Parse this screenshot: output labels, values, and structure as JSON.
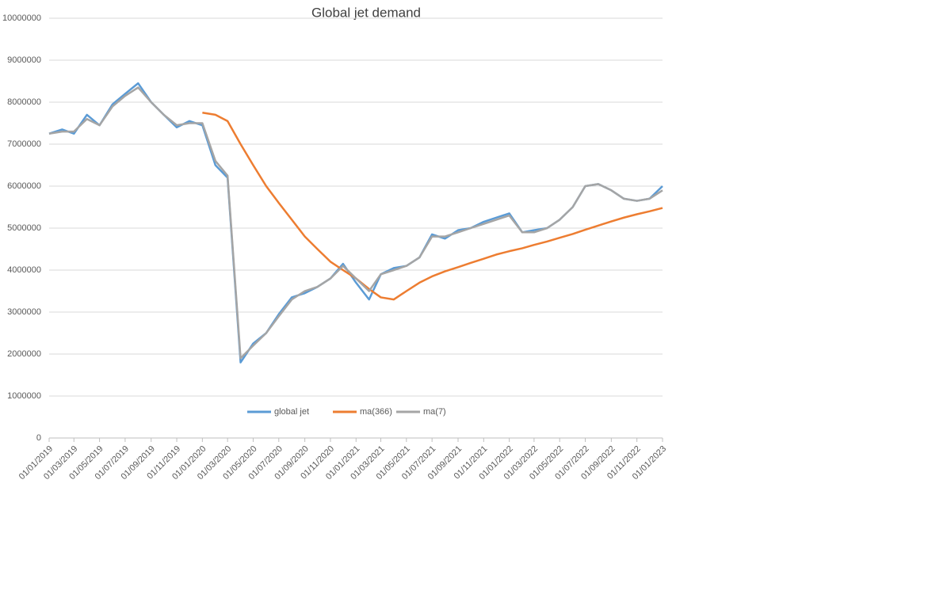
{
  "chart_data": {
    "type": "line",
    "title": "Global jet demand",
    "x": [
      "01/01/2019",
      "01/02/2019",
      "01/03/2019",
      "01/04/2019",
      "01/05/2019",
      "01/06/2019",
      "01/07/2019",
      "01/08/2019",
      "01/09/2019",
      "01/10/2019",
      "01/11/2019",
      "01/12/2019",
      "01/01/2020",
      "01/02/2020",
      "01/03/2020",
      "01/04/2020",
      "01/05/2020",
      "01/06/2020",
      "01/07/2020",
      "01/08/2020",
      "01/09/2020",
      "01/10/2020",
      "01/11/2020",
      "01/12/2020",
      "01/01/2021",
      "01/02/2021",
      "01/03/2021",
      "01/04/2021",
      "01/05/2021",
      "01/06/2021",
      "01/07/2021",
      "01/08/2021",
      "01/09/2021",
      "01/10/2021",
      "01/11/2021",
      "01/12/2021",
      "01/01/2022",
      "01/02/2022",
      "01/03/2022",
      "01/04/2022",
      "01/05/2022",
      "01/06/2022",
      "01/07/2022",
      "01/08/2022",
      "01/09/2022",
      "01/10/2022",
      "01/11/2022",
      "01/12/2022",
      "01/01/2023"
    ],
    "series": [
      {
        "name": "global jet",
        "color": "#5b9bd5",
        "values": [
          7250000,
          7350000,
          7250000,
          7700000,
          7450000,
          7950000,
          8200000,
          8450000,
          8000000,
          7700000,
          7400000,
          7550000,
          7450000,
          6500000,
          6200000,
          1800000,
          2250000,
          2500000,
          2950000,
          3350000,
          3450000,
          3600000,
          3800000,
          4150000,
          3700000,
          3300000,
          3900000,
          4050000,
          4100000,
          4300000,
          4850000,
          4750000,
          4950000,
          5000000,
          5150000,
          5250000,
          5350000,
          4900000,
          4950000,
          5000000,
          5200000,
          5500000,
          6000000,
          6050000,
          5900000,
          5700000,
          5650000,
          5700000,
          6000000
        ]
      },
      {
        "name": "ma(366)",
        "color": "#ed7d31",
        "values": [
          null,
          null,
          null,
          null,
          null,
          null,
          null,
          null,
          null,
          null,
          null,
          null,
          7750000,
          7700000,
          7550000,
          7000000,
          6500000,
          6000000,
          5600000,
          5200000,
          4800000,
          4500000,
          4200000,
          4000000,
          3800000,
          3550000,
          3350000,
          3300000,
          3500000,
          3700000,
          3850000,
          3970000,
          4070000,
          4170000,
          4270000,
          4370000,
          4450000,
          4520000,
          4600000,
          4680000,
          4770000,
          4860000,
          4960000,
          5060000,
          5160000,
          5250000,
          5330000,
          5400000,
          5480000
        ]
      },
      {
        "name": "ma(7)",
        "color": "#a5a5a5",
        "values": [
          7250000,
          7300000,
          7300000,
          7600000,
          7450000,
          7900000,
          8150000,
          8350000,
          8000000,
          7700000,
          7450000,
          7500000,
          7500000,
          6600000,
          6250000,
          1900000,
          2200000,
          2500000,
          2900000,
          3300000,
          3500000,
          3600000,
          3800000,
          4100000,
          3800000,
          3500000,
          3900000,
          4000000,
          4100000,
          4300000,
          4800000,
          4800000,
          4900000,
          5000000,
          5100000,
          5200000,
          5300000,
          4900000,
          4900000,
          5000000,
          5200000,
          5500000,
          6000000,
          6050000,
          5900000,
          5700000,
          5650000,
          5700000,
          5900000
        ]
      }
    ],
    "ylim": [
      0,
      10000000
    ],
    "yticks": [
      0,
      1000000,
      2000000,
      3000000,
      4000000,
      5000000,
      6000000,
      7000000,
      8000000,
      9000000,
      10000000
    ],
    "xticks": [
      "01/01/2019",
      "01/03/2019",
      "01/05/2019",
      "01/07/2019",
      "01/09/2019",
      "01/11/2019",
      "01/01/2020",
      "01/03/2020",
      "01/05/2020",
      "01/07/2020",
      "01/09/2020",
      "01/11/2020",
      "01/01/2021",
      "01/03/2021",
      "01/05/2021",
      "01/07/2021",
      "01/09/2021",
      "01/11/2021",
      "01/01/2022",
      "01/03/2022",
      "01/05/2022",
      "01/07/2022",
      "01/09/2022",
      "01/11/2022",
      "01/01/2023"
    ],
    "grid": true
  }
}
